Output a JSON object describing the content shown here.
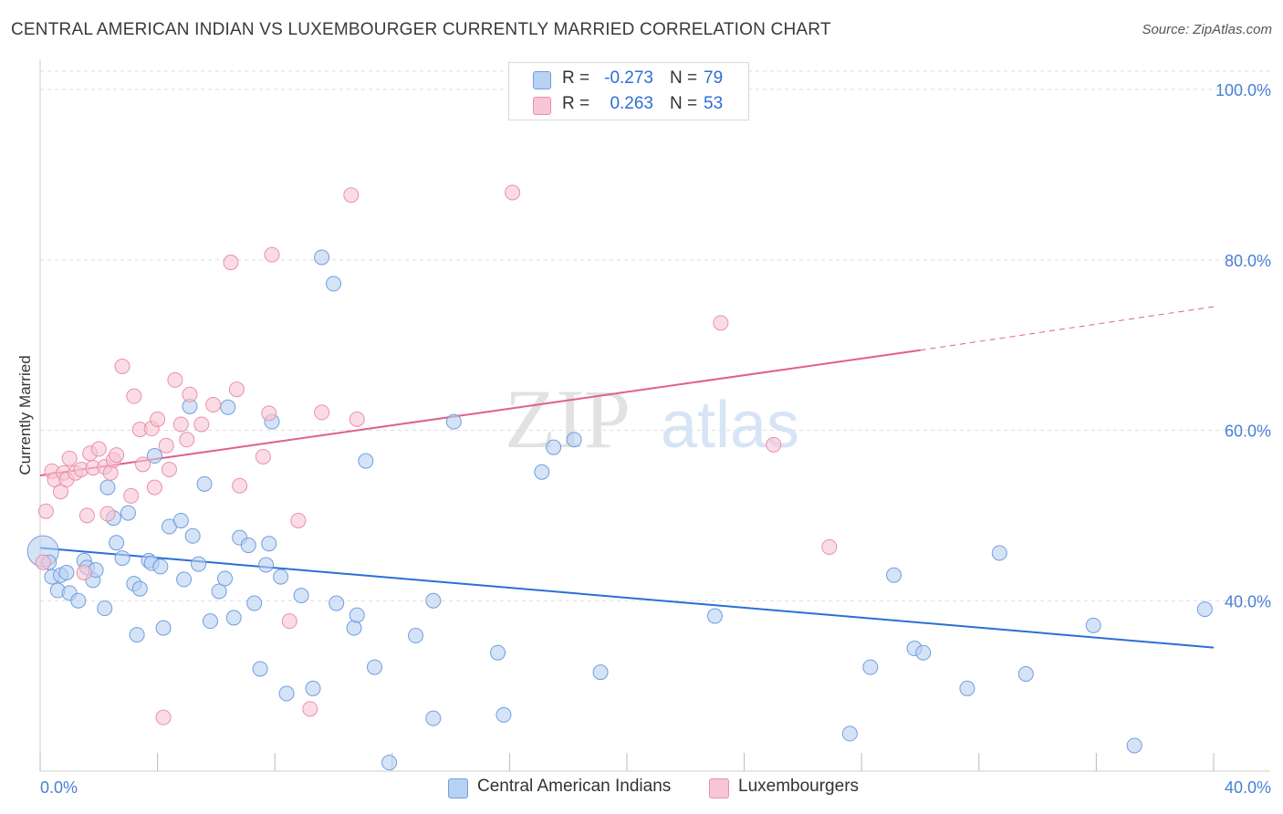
{
  "title": "CENTRAL AMERICAN INDIAN VS LUXEMBOURGER CURRENTLY MARRIED CORRELATION CHART",
  "source": "Source: ZipAtlas.com",
  "watermark": {
    "part1": "ZIP",
    "part2": "atlas"
  },
  "legend": {
    "rows": [
      {
        "r_key": "R =",
        "r_value": "-0.273",
        "n_key": "N =",
        "n_value": "79"
      },
      {
        "r_key": "R =",
        "r_value": "0.263",
        "n_key": "N =",
        "n_value": "53"
      }
    ]
  },
  "bottom_legend": [
    "Central American Indians",
    "Luxembourgers"
  ],
  "colors": {
    "blue_fill": "#b9d1f2",
    "blue_stroke": "#6f9fe0",
    "blue_line": "#2a6fd6",
    "pink_fill": "#f8c5d4",
    "pink_stroke": "#e891ab",
    "pink_line": "#e0608a",
    "tick_text": "#4a7fd4",
    "grid": "#dddddd"
  },
  "chart_data": {
    "type": "scatter",
    "title": "CENTRAL AMERICAN INDIAN VS LUXEMBOURGER CURRENTLY MARRIED CORRELATION CHART",
    "xlabel": "",
    "ylabel": "Currently Married",
    "xlim": [
      0,
      40
    ],
    "ylim": [
      20,
      103
    ],
    "x_tick_labels": [
      "0.0%",
      "40.0%"
    ],
    "y_ticks": [
      40,
      60,
      80,
      100
    ],
    "y_tick_labels": [
      "40.0%",
      "60.0%",
      "80.0%",
      "100.0%"
    ],
    "grid": true,
    "legend_position": "top-center",
    "series": [
      {
        "name": "Central American Indians",
        "color": "#6f9fe0",
        "trend": {
          "x": [
            0,
            40
          ],
          "y": [
            46.2,
            34.5
          ]
        },
        "points": [
          [
            0.1,
            45.8
          ],
          [
            0.3,
            44.5
          ],
          [
            0.4,
            42.8
          ],
          [
            0.6,
            41.2
          ],
          [
            0.7,
            43.0
          ],
          [
            0.9,
            43.3
          ],
          [
            1.0,
            40.9
          ],
          [
            1.3,
            40.0
          ],
          [
            1.5,
            44.7
          ],
          [
            1.6,
            43.9
          ],
          [
            1.8,
            42.4
          ],
          [
            1.9,
            43.6
          ],
          [
            2.2,
            39.1
          ],
          [
            2.3,
            53.3
          ],
          [
            2.5,
            49.7
          ],
          [
            2.6,
            46.8
          ],
          [
            2.8,
            45.0
          ],
          [
            3.0,
            50.3
          ],
          [
            3.2,
            42.0
          ],
          [
            3.3,
            36.0
          ],
          [
            3.4,
            41.4
          ],
          [
            3.7,
            44.7
          ],
          [
            3.8,
            44.4
          ],
          [
            3.9,
            57.0
          ],
          [
            4.1,
            44.0
          ],
          [
            4.2,
            36.8
          ],
          [
            4.4,
            48.7
          ],
          [
            4.8,
            49.4
          ],
          [
            4.9,
            42.5
          ],
          [
            5.1,
            62.8
          ],
          [
            5.2,
            47.6
          ],
          [
            5.4,
            44.3
          ],
          [
            5.6,
            53.7
          ],
          [
            5.8,
            37.6
          ],
          [
            6.1,
            41.1
          ],
          [
            6.3,
            42.6
          ],
          [
            6.4,
            62.7
          ],
          [
            6.6,
            38.0
          ],
          [
            6.8,
            47.4
          ],
          [
            7.1,
            46.5
          ],
          [
            7.3,
            39.7
          ],
          [
            7.5,
            32.0
          ],
          [
            7.7,
            44.2
          ],
          [
            7.8,
            46.7
          ],
          [
            7.9,
            61.0
          ],
          [
            8.2,
            42.8
          ],
          [
            8.4,
            29.1
          ],
          [
            8.9,
            40.6
          ],
          [
            9.3,
            29.7
          ],
          [
            9.6,
            80.3
          ],
          [
            10.0,
            77.2
          ],
          [
            10.1,
            39.7
          ],
          [
            10.7,
            36.8
          ],
          [
            10.8,
            38.3
          ],
          [
            11.1,
            56.4
          ],
          [
            11.4,
            32.2
          ],
          [
            11.9,
            21.0
          ],
          [
            12.8,
            35.9
          ],
          [
            13.4,
            26.2
          ],
          [
            13.4,
            40.0
          ],
          [
            14.1,
            61.0
          ],
          [
            15.6,
            33.9
          ],
          [
            15.8,
            26.6
          ],
          [
            17.1,
            55.1
          ],
          [
            17.5,
            58.0
          ],
          [
            18.2,
            58.9
          ],
          [
            19.1,
            31.6
          ],
          [
            23.0,
            38.2
          ],
          [
            27.6,
            24.4
          ],
          [
            28.3,
            32.2
          ],
          [
            29.1,
            43.0
          ],
          [
            29.8,
            34.4
          ],
          [
            30.1,
            33.9
          ],
          [
            31.6,
            29.7
          ],
          [
            32.7,
            45.6
          ],
          [
            33.6,
            31.4
          ],
          [
            35.9,
            37.1
          ],
          [
            37.3,
            23.0
          ],
          [
            39.7,
            39.0
          ]
        ]
      },
      {
        "name": "Luxembourgers",
        "color": "#e891ab",
        "trend": {
          "x": [
            0,
            30
          ],
          "y": [
            54.7,
            69.4
          ]
        },
        "trend_dashed": {
          "x": [
            30,
            40
          ],
          "y": [
            69.4,
            74.5
          ]
        },
        "points": [
          [
            0.1,
            44.5
          ],
          [
            0.2,
            50.5
          ],
          [
            0.4,
            55.2
          ],
          [
            0.5,
            54.2
          ],
          [
            0.7,
            52.8
          ],
          [
            0.8,
            55.0
          ],
          [
            0.9,
            54.2
          ],
          [
            1.0,
            56.7
          ],
          [
            1.2,
            55.0
          ],
          [
            1.4,
            55.4
          ],
          [
            1.5,
            43.3
          ],
          [
            1.6,
            50.0
          ],
          [
            1.7,
            57.3
          ],
          [
            1.8,
            55.6
          ],
          [
            2.0,
            57.8
          ],
          [
            2.2,
            55.7
          ],
          [
            2.3,
            50.2
          ],
          [
            2.4,
            55.0
          ],
          [
            2.5,
            56.5
          ],
          [
            2.6,
            57.1
          ],
          [
            2.8,
            67.5
          ],
          [
            3.1,
            52.3
          ],
          [
            3.2,
            64.0
          ],
          [
            3.4,
            60.1
          ],
          [
            3.5,
            56.0
          ],
          [
            3.8,
            60.2
          ],
          [
            3.9,
            53.3
          ],
          [
            4.0,
            61.3
          ],
          [
            4.2,
            26.3
          ],
          [
            4.3,
            58.2
          ],
          [
            4.4,
            55.4
          ],
          [
            4.6,
            65.9
          ],
          [
            4.8,
            60.7
          ],
          [
            5.0,
            58.9
          ],
          [
            5.1,
            64.2
          ],
          [
            5.5,
            60.7
          ],
          [
            5.9,
            63.0
          ],
          [
            6.5,
            79.7
          ],
          [
            6.7,
            64.8
          ],
          [
            6.8,
            53.5
          ],
          [
            7.6,
            56.9
          ],
          [
            7.8,
            62.0
          ],
          [
            7.9,
            80.6
          ],
          [
            8.5,
            37.6
          ],
          [
            8.8,
            49.4
          ],
          [
            9.2,
            27.3
          ],
          [
            9.6,
            62.1
          ],
          [
            10.6,
            87.6
          ],
          [
            10.8,
            61.3
          ],
          [
            16.1,
            87.9
          ],
          [
            23.2,
            72.6
          ],
          [
            25.0,
            58.3
          ],
          [
            26.9,
            46.3
          ]
        ]
      }
    ]
  }
}
